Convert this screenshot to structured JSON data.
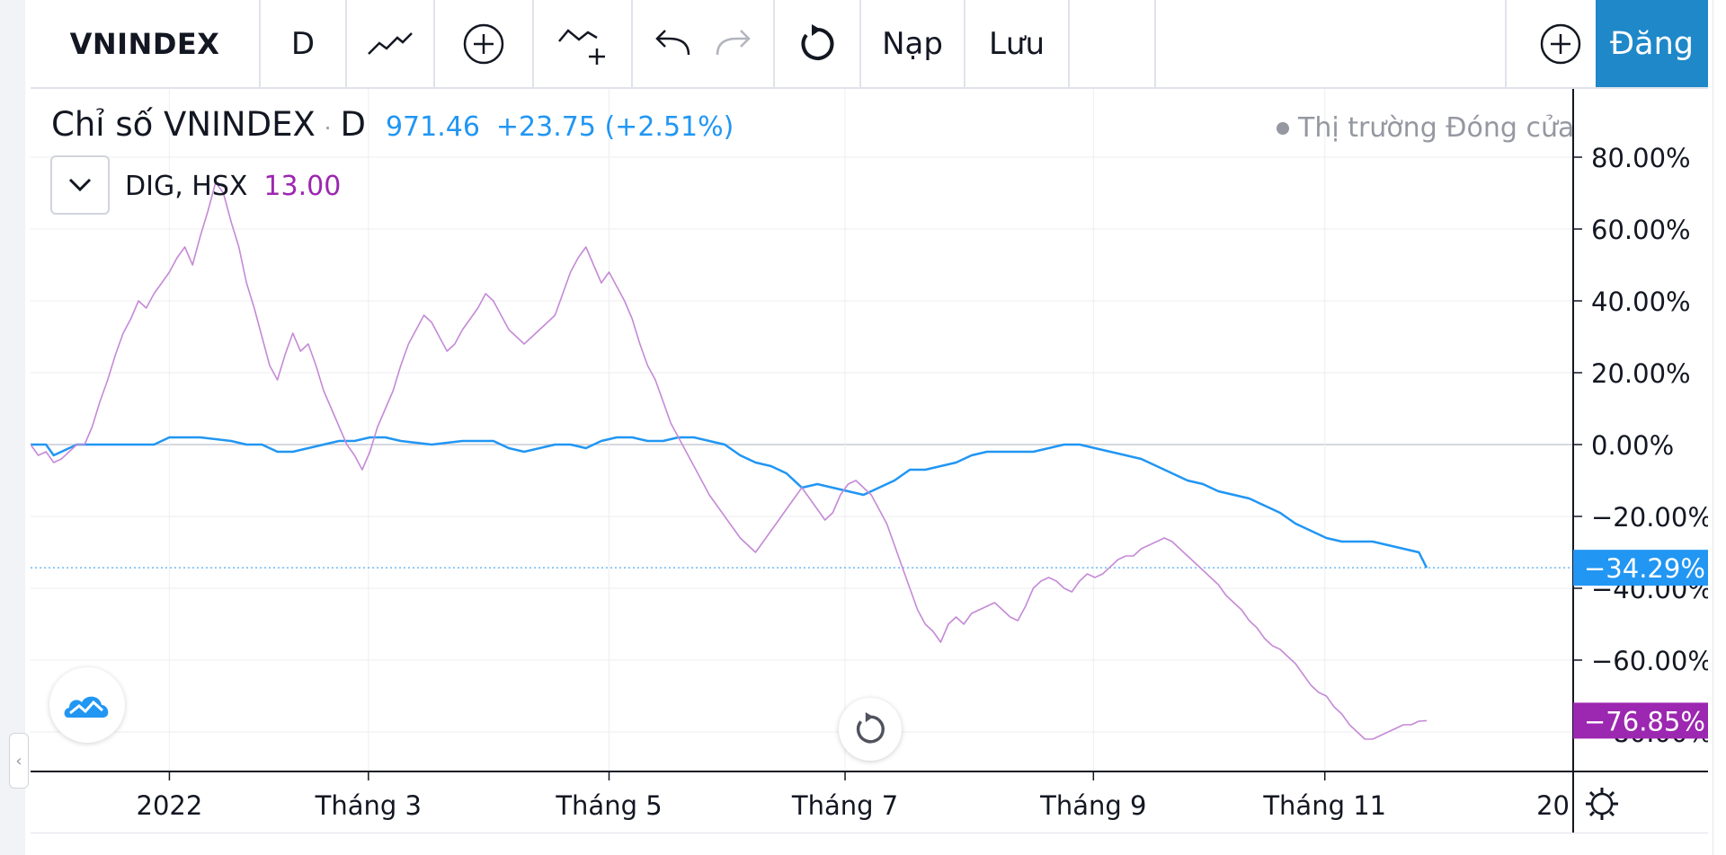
{
  "toolbar": {
    "symbol": "VNINDEX",
    "interval": "D",
    "load_label": "Nạp",
    "save_label": "Lưu",
    "signup_label": "Đăng"
  },
  "legend": {
    "main_title": "Chỉ số VNINDEX",
    "main_interval": "D",
    "main_value": "971.46",
    "main_change": "+23.75 (+2.51%)",
    "compare_symbol": "DIG, HSX",
    "compare_value": "13.00",
    "market_status": "Thị trường Đóng cửa"
  },
  "colors": {
    "vnindex": "#2196f3",
    "dig": "#9c27b0",
    "dig_line": "#c58ad6",
    "grid": "#edeef1",
    "axis_text": "#131722",
    "signup_bg": "#1e88c9"
  },
  "icons": [
    "bar-style-icon",
    "add-indicator-icon",
    "compare-icon",
    "undo-icon",
    "redo-icon",
    "reload-icon",
    "plus-icon",
    "chevron-down-icon",
    "tradingview-logo-icon",
    "reset-chart-icon",
    "gear-icon"
  ],
  "chart_data": {
    "type": "line",
    "unit": "%",
    "ylim": [
      -91,
      99
    ],
    "y_ticks": [
      "80.00%",
      "60.00%",
      "40.00%",
      "20.00%",
      "0.00%",
      "−20.00%",
      "−40.00%",
      "−60.00%",
      "−80.00%"
    ],
    "y_tick_values": [
      80,
      60,
      40,
      20,
      0,
      -20,
      -40,
      -60,
      -80
    ],
    "x_ticks": [
      "2022",
      "Tháng 3",
      "Tháng 5",
      "Tháng 7",
      "Tháng 9",
      "Tháng 11",
      "20"
    ],
    "x_tick_values": [
      0.09,
      0.219,
      0.375,
      0.528,
      0.689,
      0.839,
      1.0
    ],
    "grid": true,
    "series": [
      {
        "name": "VNINDEX",
        "last_label": "−34.29%",
        "points": [
          [
            0,
            0
          ],
          [
            0.01,
            0
          ],
          [
            0.015,
            -3
          ],
          [
            0.02,
            -2
          ],
          [
            0.03,
            0
          ],
          [
            0.04,
            0
          ],
          [
            0.06,
            0
          ],
          [
            0.08,
            0
          ],
          [
            0.09,
            2
          ],
          [
            0.1,
            2
          ],
          [
            0.11,
            2
          ],
          [
            0.13,
            1
          ],
          [
            0.14,
            0
          ],
          [
            0.15,
            0
          ],
          [
            0.16,
            -2
          ],
          [
            0.17,
            -2
          ],
          [
            0.18,
            -1
          ],
          [
            0.19,
            0
          ],
          [
            0.2,
            1
          ],
          [
            0.21,
            1
          ],
          [
            0.22,
            2
          ],
          [
            0.23,
            2
          ],
          [
            0.24,
            1
          ],
          [
            0.26,
            0
          ],
          [
            0.28,
            1
          ],
          [
            0.3,
            1
          ],
          [
            0.31,
            -1
          ],
          [
            0.32,
            -2
          ],
          [
            0.33,
            -1
          ],
          [
            0.34,
            0
          ],
          [
            0.35,
            0
          ],
          [
            0.36,
            -1
          ],
          [
            0.37,
            1
          ],
          [
            0.38,
            2
          ],
          [
            0.39,
            2
          ],
          [
            0.4,
            1
          ],
          [
            0.41,
            1
          ],
          [
            0.42,
            2
          ],
          [
            0.43,
            2
          ],
          [
            0.44,
            1
          ],
          [
            0.45,
            0
          ],
          [
            0.46,
            -3
          ],
          [
            0.47,
            -5
          ],
          [
            0.48,
            -6
          ],
          [
            0.49,
            -8
          ],
          [
            0.5,
            -12
          ],
          [
            0.51,
            -11
          ],
          [
            0.52,
            -12
          ],
          [
            0.53,
            -13
          ],
          [
            0.54,
            -14
          ],
          [
            0.55,
            -12
          ],
          [
            0.56,
            -10
          ],
          [
            0.57,
            -7
          ],
          [
            0.58,
            -7
          ],
          [
            0.59,
            -6
          ],
          [
            0.6,
            -5
          ],
          [
            0.61,
            -3
          ],
          [
            0.62,
            -2
          ],
          [
            0.63,
            -2
          ],
          [
            0.64,
            -2
          ],
          [
            0.65,
            -2
          ],
          [
            0.66,
            -1
          ],
          [
            0.67,
            0
          ],
          [
            0.68,
            0
          ],
          [
            0.69,
            -1
          ],
          [
            0.7,
            -2
          ],
          [
            0.71,
            -3
          ],
          [
            0.72,
            -4
          ],
          [
            0.73,
            -6
          ],
          [
            0.74,
            -8
          ],
          [
            0.75,
            -10
          ],
          [
            0.76,
            -11
          ],
          [
            0.77,
            -13
          ],
          [
            0.78,
            -14
          ],
          [
            0.79,
            -15
          ],
          [
            0.8,
            -17
          ],
          [
            0.81,
            -19
          ],
          [
            0.82,
            -22
          ],
          [
            0.83,
            -24
          ],
          [
            0.84,
            -26
          ],
          [
            0.85,
            -27
          ],
          [
            0.86,
            -27
          ],
          [
            0.87,
            -27
          ],
          [
            0.88,
            -28
          ],
          [
            0.89,
            -29
          ],
          [
            0.9,
            -30
          ],
          [
            0.905,
            -34.29
          ]
        ]
      },
      {
        "name": "DIG, HSX",
        "last_label": "−76.85%",
        "points": [
          [
            0,
            0
          ],
          [
            0.005,
            -3
          ],
          [
            0.01,
            -2
          ],
          [
            0.015,
            -5
          ],
          [
            0.02,
            -4
          ],
          [
            0.03,
            0
          ],
          [
            0.035,
            0
          ],
          [
            0.04,
            5
          ],
          [
            0.045,
            12
          ],
          [
            0.05,
            18
          ],
          [
            0.055,
            25
          ],
          [
            0.06,
            31
          ],
          [
            0.065,
            35
          ],
          [
            0.07,
            40
          ],
          [
            0.075,
            38
          ],
          [
            0.08,
            42
          ],
          [
            0.085,
            45
          ],
          [
            0.09,
            48
          ],
          [
            0.095,
            52
          ],
          [
            0.1,
            55
          ],
          [
            0.105,
            50
          ],
          [
            0.11,
            58
          ],
          [
            0.115,
            65
          ],
          [
            0.12,
            73
          ],
          [
            0.125,
            70
          ],
          [
            0.13,
            62
          ],
          [
            0.135,
            55
          ],
          [
            0.14,
            45
          ],
          [
            0.145,
            38
          ],
          [
            0.15,
            30
          ],
          [
            0.155,
            22
          ],
          [
            0.16,
            18
          ],
          [
            0.165,
            25
          ],
          [
            0.17,
            31
          ],
          [
            0.175,
            26
          ],
          [
            0.18,
            28
          ],
          [
            0.185,
            22
          ],
          [
            0.19,
            15
          ],
          [
            0.195,
            10
          ],
          [
            0.2,
            5
          ],
          [
            0.205,
            0
          ],
          [
            0.21,
            -3
          ],
          [
            0.215,
            -7
          ],
          [
            0.22,
            -2
          ],
          [
            0.225,
            5
          ],
          [
            0.23,
            10
          ],
          [
            0.235,
            15
          ],
          [
            0.24,
            22
          ],
          [
            0.245,
            28
          ],
          [
            0.25,
            32
          ],
          [
            0.255,
            36
          ],
          [
            0.26,
            34
          ],
          [
            0.265,
            30
          ],
          [
            0.27,
            26
          ],
          [
            0.275,
            28
          ],
          [
            0.28,
            32
          ],
          [
            0.285,
            35
          ],
          [
            0.29,
            38
          ],
          [
            0.295,
            42
          ],
          [
            0.3,
            40
          ],
          [
            0.305,
            36
          ],
          [
            0.31,
            32
          ],
          [
            0.315,
            30
          ],
          [
            0.32,
            28
          ],
          [
            0.325,
            30
          ],
          [
            0.33,
            32
          ],
          [
            0.335,
            34
          ],
          [
            0.34,
            36
          ],
          [
            0.345,
            42
          ],
          [
            0.35,
            48
          ],
          [
            0.355,
            52
          ],
          [
            0.36,
            55
          ],
          [
            0.365,
            50
          ],
          [
            0.37,
            45
          ],
          [
            0.375,
            48
          ],
          [
            0.38,
            44
          ],
          [
            0.385,
            40
          ],
          [
            0.39,
            35
          ],
          [
            0.395,
            28
          ],
          [
            0.4,
            22
          ],
          [
            0.405,
            18
          ],
          [
            0.41,
            12
          ],
          [
            0.415,
            6
          ],
          [
            0.42,
            2
          ],
          [
            0.425,
            -2
          ],
          [
            0.43,
            -6
          ],
          [
            0.435,
            -10
          ],
          [
            0.44,
            -14
          ],
          [
            0.445,
            -17
          ],
          [
            0.45,
            -20
          ],
          [
            0.455,
            -23
          ],
          [
            0.46,
            -26
          ],
          [
            0.465,
            -28
          ],
          [
            0.47,
            -30
          ],
          [
            0.475,
            -27
          ],
          [
            0.48,
            -24
          ],
          [
            0.485,
            -21
          ],
          [
            0.49,
            -18
          ],
          [
            0.495,
            -15
          ],
          [
            0.5,
            -12
          ],
          [
            0.505,
            -15
          ],
          [
            0.51,
            -18
          ],
          [
            0.515,
            -21
          ],
          [
            0.52,
            -19
          ],
          [
            0.525,
            -14
          ],
          [
            0.53,
            -11
          ],
          [
            0.535,
            -10
          ],
          [
            0.54,
            -12
          ],
          [
            0.545,
            -14
          ],
          [
            0.55,
            -18
          ],
          [
            0.555,
            -22
          ],
          [
            0.56,
            -28
          ],
          [
            0.565,
            -34
          ],
          [
            0.57,
            -40
          ],
          [
            0.575,
            -46
          ],
          [
            0.58,
            -50
          ],
          [
            0.585,
            -52
          ],
          [
            0.59,
            -55
          ],
          [
            0.595,
            -50
          ],
          [
            0.6,
            -48
          ],
          [
            0.605,
            -50
          ],
          [
            0.61,
            -47
          ],
          [
            0.615,
            -46
          ],
          [
            0.62,
            -45
          ],
          [
            0.625,
            -44
          ],
          [
            0.63,
            -46
          ],
          [
            0.635,
            -48
          ],
          [
            0.64,
            -49
          ],
          [
            0.645,
            -45
          ],
          [
            0.65,
            -40
          ],
          [
            0.655,
            -38
          ],
          [
            0.66,
            -37
          ],
          [
            0.665,
            -38
          ],
          [
            0.67,
            -40
          ],
          [
            0.675,
            -41
          ],
          [
            0.68,
            -38
          ],
          [
            0.685,
            -36
          ],
          [
            0.69,
            -37
          ],
          [
            0.695,
            -36
          ],
          [
            0.7,
            -34
          ],
          [
            0.705,
            -32
          ],
          [
            0.71,
            -31
          ],
          [
            0.715,
            -31
          ],
          [
            0.72,
            -29
          ],
          [
            0.725,
            -28
          ],
          [
            0.73,
            -27
          ],
          [
            0.735,
            -26
          ],
          [
            0.74,
            -27
          ],
          [
            0.745,
            -29
          ],
          [
            0.75,
            -31
          ],
          [
            0.755,
            -33
          ],
          [
            0.76,
            -35
          ],
          [
            0.765,
            -37
          ],
          [
            0.77,
            -39
          ],
          [
            0.775,
            -42
          ],
          [
            0.78,
            -44
          ],
          [
            0.785,
            -46
          ],
          [
            0.79,
            -49
          ],
          [
            0.795,
            -51
          ],
          [
            0.8,
            -54
          ],
          [
            0.805,
            -56
          ],
          [
            0.81,
            -57
          ],
          [
            0.815,
            -59
          ],
          [
            0.82,
            -61
          ],
          [
            0.825,
            -64
          ],
          [
            0.83,
            -67
          ],
          [
            0.835,
            -69
          ],
          [
            0.84,
            -70
          ],
          [
            0.845,
            -73
          ],
          [
            0.85,
            -75
          ],
          [
            0.855,
            -78
          ],
          [
            0.86,
            -80
          ],
          [
            0.865,
            -82
          ],
          [
            0.87,
            -82
          ],
          [
            0.875,
            -81
          ],
          [
            0.88,
            -80
          ],
          [
            0.885,
            -79
          ],
          [
            0.89,
            -78
          ],
          [
            0.895,
            -78
          ],
          [
            0.9,
            -77
          ],
          [
            0.905,
            -76.85
          ]
        ]
      }
    ]
  }
}
